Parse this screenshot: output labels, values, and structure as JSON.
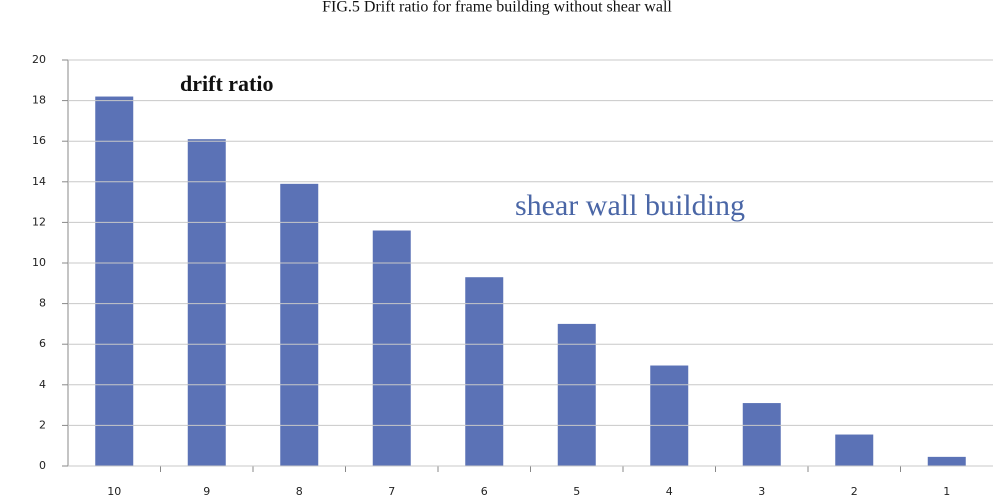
{
  "chart_data": {
    "type": "bar",
    "title": "FIG.5 Drift ratio for frame building without shear wall",
    "annotations": [
      "drift ratio",
      "shear wall building"
    ],
    "categories": [
      "10",
      "9",
      "8",
      "7",
      "6",
      "5",
      "4",
      "3",
      "2",
      "1"
    ],
    "values": [
      18.2,
      16.1,
      13.9,
      11.6,
      9.3,
      7.0,
      4.95,
      3.1,
      1.55,
      0.45
    ],
    "color": "#5b72b6",
    "ylim": [
      0,
      20
    ],
    "yticks": [
      0,
      2,
      4,
      6,
      8,
      10,
      12,
      14,
      16,
      18,
      20
    ],
    "grid": true
  }
}
